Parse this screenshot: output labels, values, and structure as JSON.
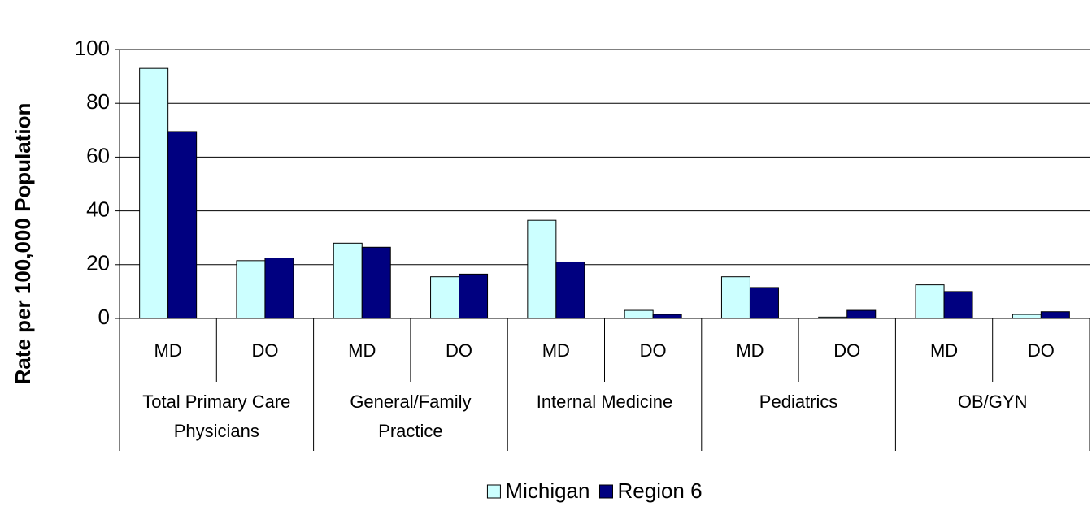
{
  "chart_data": {
    "type": "bar",
    "y_label": "Rate per 100,000 Population",
    "categories": [
      "MD",
      "DO",
      "MD",
      "DO",
      "MD",
      "DO",
      "MD",
      "DO",
      "MD",
      "DO"
    ],
    "groups": [
      "Total Primary Care Physicians",
      "General/Family Practice",
      "Internal Medicine",
      "Pediatrics",
      "OB/GYN"
    ],
    "series": [
      {
        "name": "Michigan",
        "color": "#ccffff",
        "values": [
          93,
          21.5,
          28,
          15.5,
          36.5,
          3,
          15.5,
          0.5,
          12.5,
          1.5
        ]
      },
      {
        "name": "Region 6",
        "color": "#000080",
        "values": [
          69.5,
          22.5,
          26.5,
          16.5,
          21,
          1.5,
          11.5,
          3,
          10,
          2.5
        ]
      }
    ],
    "ylim": [
      0,
      100
    ],
    "yticks": [
      0,
      20,
      40,
      60,
      80,
      100
    ],
    "grid": true,
    "legend": "bottom"
  }
}
